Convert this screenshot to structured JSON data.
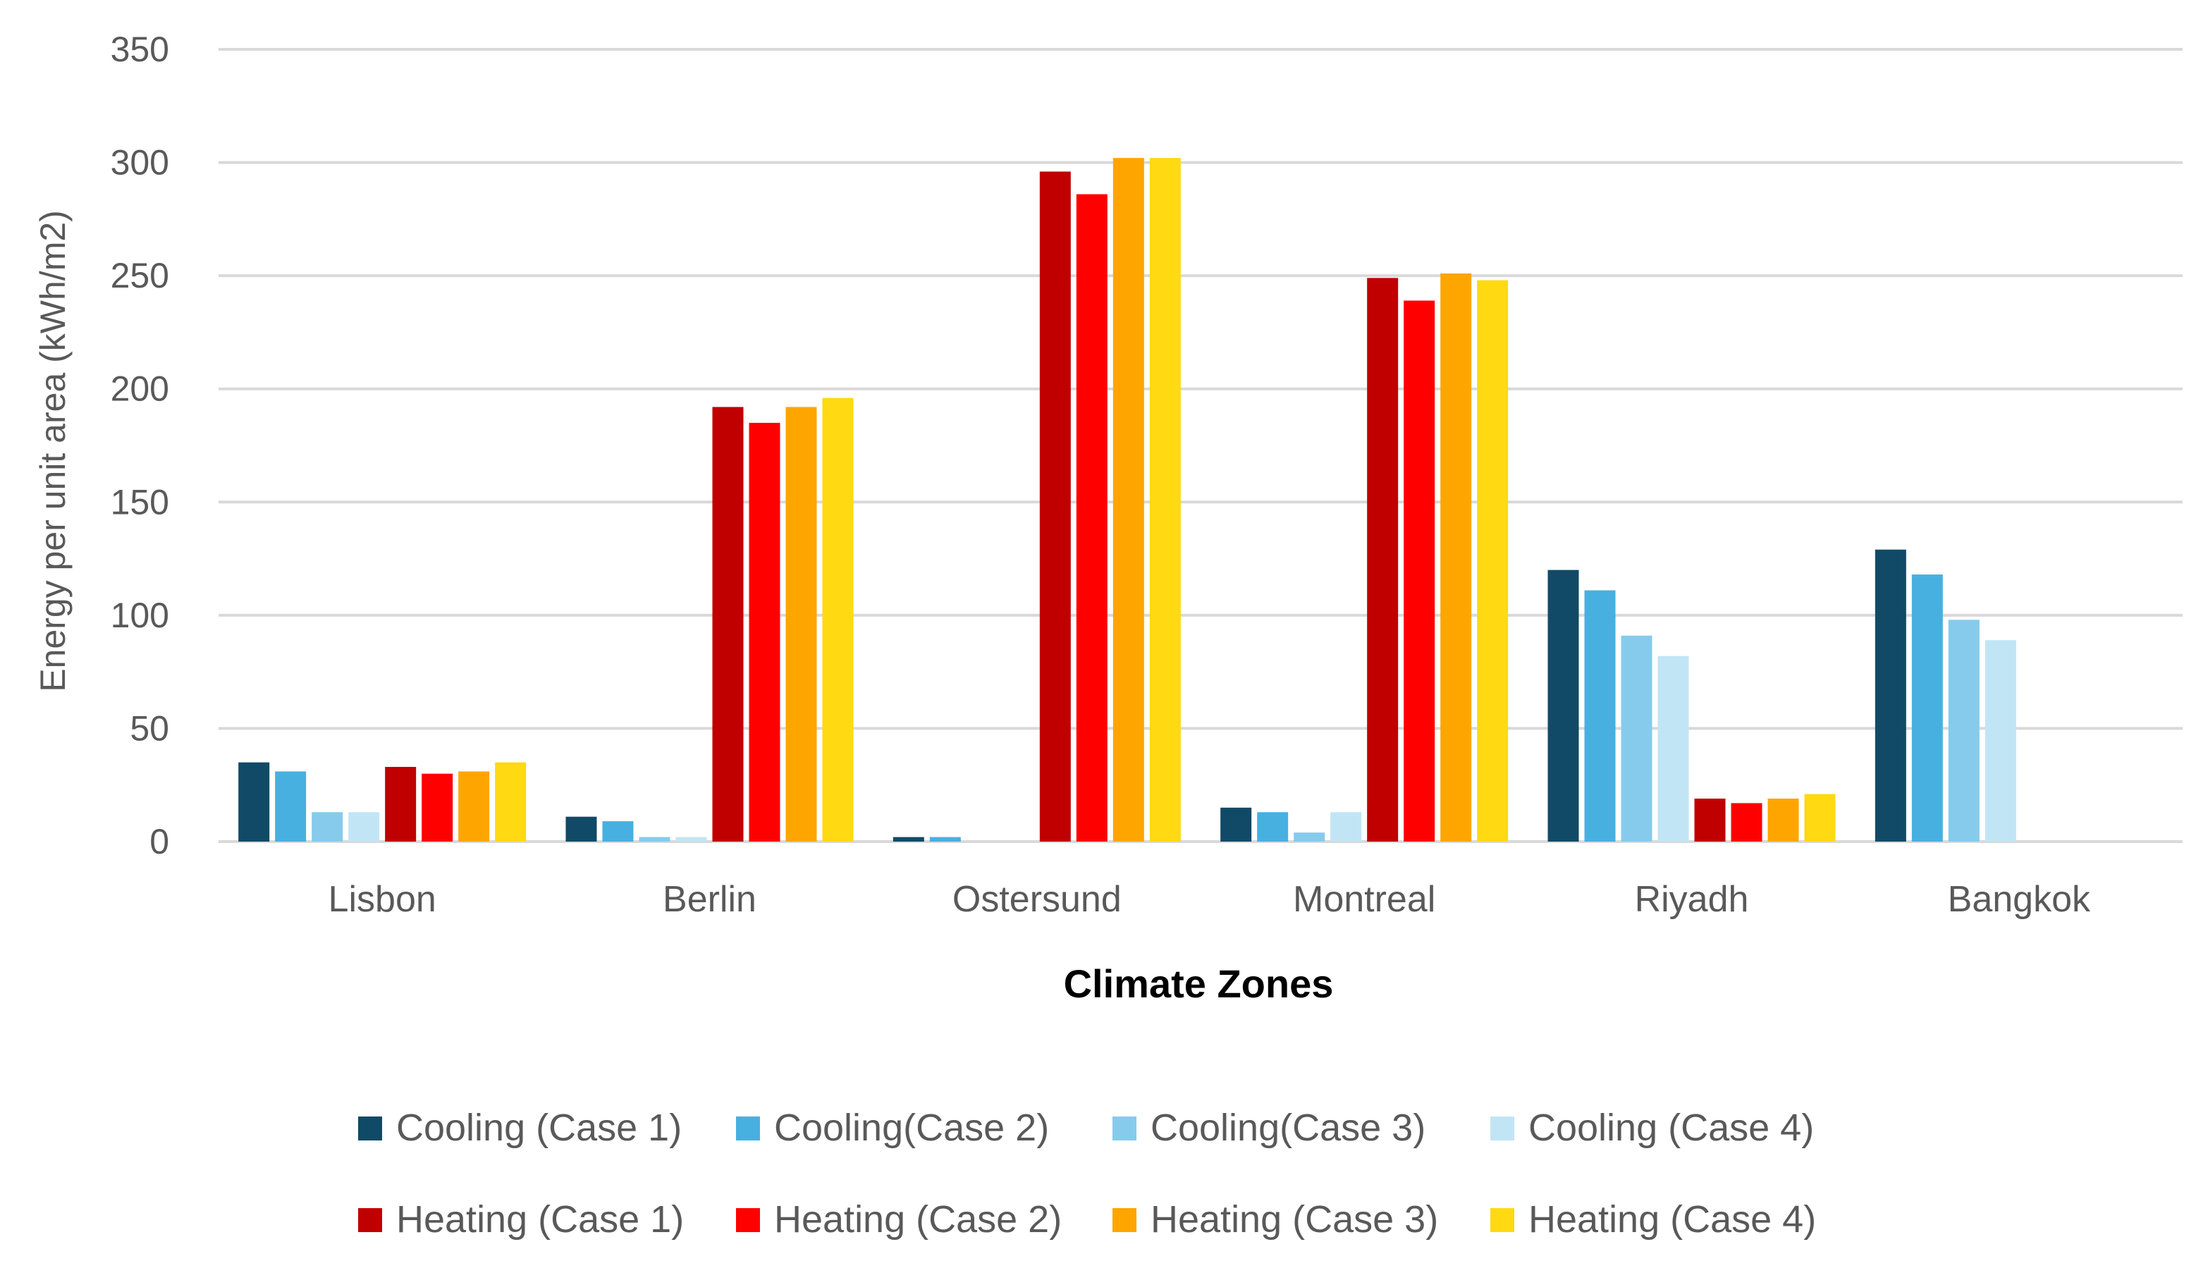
{
  "chart_data": {
    "type": "bar",
    "title": "",
    "xlabel": "Climate Zones",
    "ylabel": "Energy per unit area (kWh/m2)",
    "ylim": [
      0,
      350
    ],
    "yticks": [
      0,
      50,
      100,
      150,
      200,
      250,
      300,
      350
    ],
    "grid": true,
    "legend_placement": "bottom",
    "categories": [
      "Lisbon",
      "Berlin",
      "Ostersund",
      "Montreal",
      "Riyadh",
      "Bangkok"
    ],
    "series": [
      {
        "name": "Cooling (Case 1)",
        "color": "#114A66",
        "values": [
          35,
          11,
          2,
          15,
          120,
          129
        ]
      },
      {
        "name": "Cooling(Case 2)",
        "color": "#47B0E0",
        "values": [
          31,
          9,
          2,
          13,
          111,
          118
        ]
      },
      {
        "name": "Cooling(Case 3)",
        "color": "#86CBEB",
        "values": [
          13,
          2,
          0,
          4,
          91,
          98
        ]
      },
      {
        "name": "Cooling (Case 4)",
        "color": "#C2E5F5",
        "values": [
          13,
          2,
          0,
          13,
          82,
          89
        ]
      },
      {
        "name": "Heating (Case 1)",
        "color": "#C00000",
        "values": [
          33,
          192,
          296,
          249,
          19,
          0
        ]
      },
      {
        "name": "Heating (Case 2)",
        "color": "#FF0000",
        "values": [
          30,
          185,
          286,
          239,
          17,
          0
        ]
      },
      {
        "name": "Heating (Case 3)",
        "color": "#FFA500",
        "values": [
          31,
          192,
          302,
          251,
          19,
          0
        ]
      },
      {
        "name": "Heating (Case 4)",
        "color": "#FFD912",
        "values": [
          35,
          196,
          302,
          248,
          21,
          0
        ]
      }
    ]
  }
}
